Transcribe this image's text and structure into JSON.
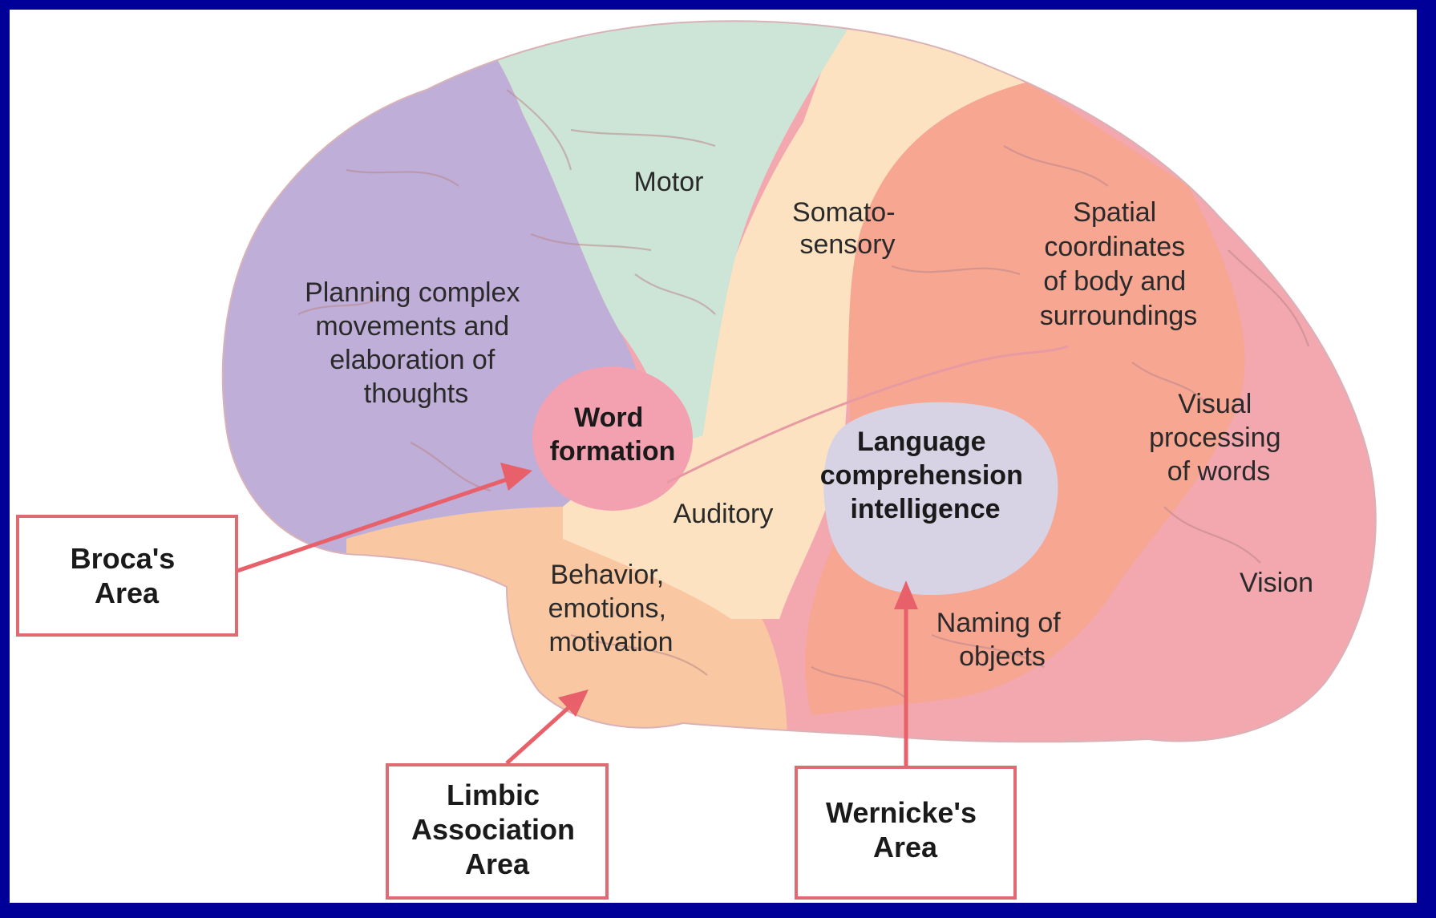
{
  "background_color": "#000099",
  "regions": {
    "motor": "Motor",
    "somatosensory": [
      "Somato-",
      "sensory"
    ],
    "planning": [
      "Planning complex",
      "movements and",
      "elaboration of",
      "thoughts"
    ],
    "word_formation": [
      "Word",
      "formation"
    ],
    "spatial": [
      "Spatial",
      "coordinates",
      "of body and",
      "surroundings"
    ],
    "visual_words": [
      "Visual",
      "processing",
      "of words"
    ],
    "language": [
      "Language",
      "comprehension",
      "intelligence"
    ],
    "auditory": "Auditory",
    "behavior": [
      "Behavior,",
      "emotions,",
      "motivation"
    ],
    "naming": [
      "Naming of",
      "objects"
    ],
    "vision": "Vision"
  },
  "callouts": {
    "broca": [
      "Broca's",
      "Area"
    ],
    "limbic": [
      "Limbic",
      "Association",
      "Area"
    ],
    "wernicke": [
      "Wernicke's",
      "Area"
    ]
  },
  "colors": {
    "planning": "#bfaed8",
    "motor": "#cde5d6",
    "somatosensory": "#fde2c2",
    "spatial": "#f7a692",
    "visual_vision": "#f3a7ae",
    "word_formation": "#f3a0b0",
    "language": "#d7d3e4",
    "temporal": "#f9c8a3",
    "arrow": "#e8606a"
  }
}
